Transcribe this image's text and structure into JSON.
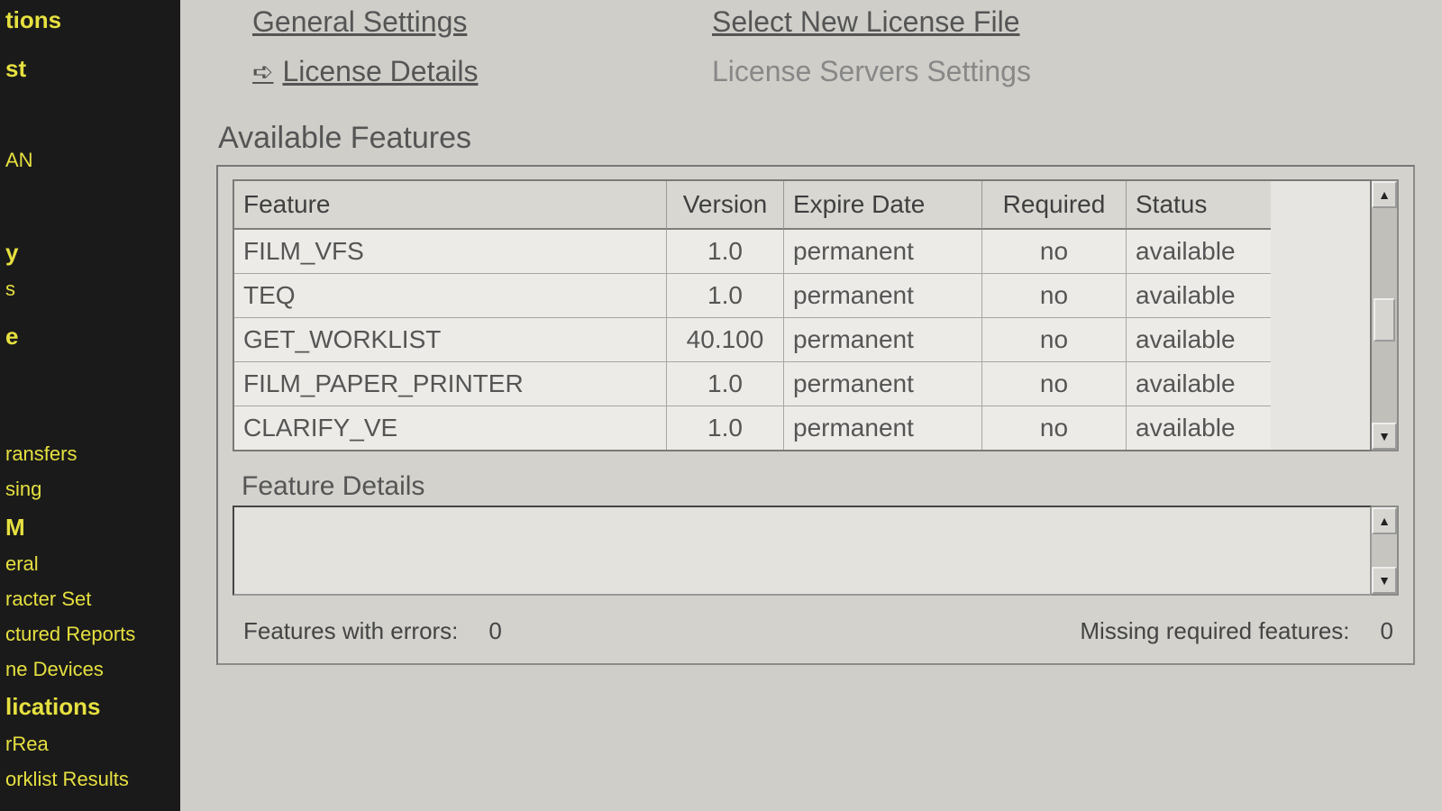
{
  "colors": {
    "sidebar_bg": "#1a1a1a",
    "sidebar_text": "#e6e040",
    "main_bg": "#cfcec9",
    "panel_border": "#7a7a77",
    "cell_bg": "#ecebe7",
    "header_bg": "#d8d7d2",
    "text": "#555"
  },
  "sidebar": {
    "items": [
      {
        "label": "tions",
        "head": true
      },
      {
        "label": "st",
        "head": true
      },
      {
        "label": "AN"
      },
      {
        "label": "y",
        "head": true
      },
      {
        "label": "s"
      },
      {
        "label": "e",
        "head": true
      },
      {
        "label": "ransfers"
      },
      {
        "label": "sing"
      },
      {
        "label": "M",
        "head": true
      },
      {
        "label": "eral"
      },
      {
        "label": "racter Set"
      },
      {
        "label": "ctured Reports"
      },
      {
        "label": "ne Devices"
      },
      {
        "label": "lications",
        "head": true
      },
      {
        "label": "rRea"
      },
      {
        "label": "orklist Results"
      }
    ]
  },
  "nav": {
    "general": "General Settings",
    "license_details": "License Details",
    "select_new": "Select New License File",
    "servers": "License Servers Settings"
  },
  "features": {
    "title": "Available Features",
    "columns": [
      "Feature",
      "Version",
      "Expire Date",
      "Required",
      "Status"
    ],
    "col_align": [
      "left",
      "center",
      "left",
      "center",
      "left"
    ],
    "rows": [
      {
        "feature": "FILM_VFS",
        "version": "1.0",
        "expire": "permanent",
        "required": "no",
        "status": "available"
      },
      {
        "feature": "TEQ",
        "version": "1.0",
        "expire": "permanent",
        "required": "no",
        "status": "available"
      },
      {
        "feature": "GET_WORKLIST",
        "version": "40.100",
        "expire": "permanent",
        "required": "no",
        "status": "available"
      },
      {
        "feature": "FILM_PAPER_PRINTER",
        "version": "1.0",
        "expire": "permanent",
        "required": "no",
        "status": "available"
      },
      {
        "feature": "CLARIFY_VE",
        "version": "1.0",
        "expire": "permanent",
        "required": "no",
        "status": "available"
      }
    ]
  },
  "details": {
    "title": "Feature Details"
  },
  "status": {
    "errors_label": "Features with errors:",
    "errors_value": "0",
    "missing_label": "Missing required features:",
    "missing_value": "0"
  }
}
